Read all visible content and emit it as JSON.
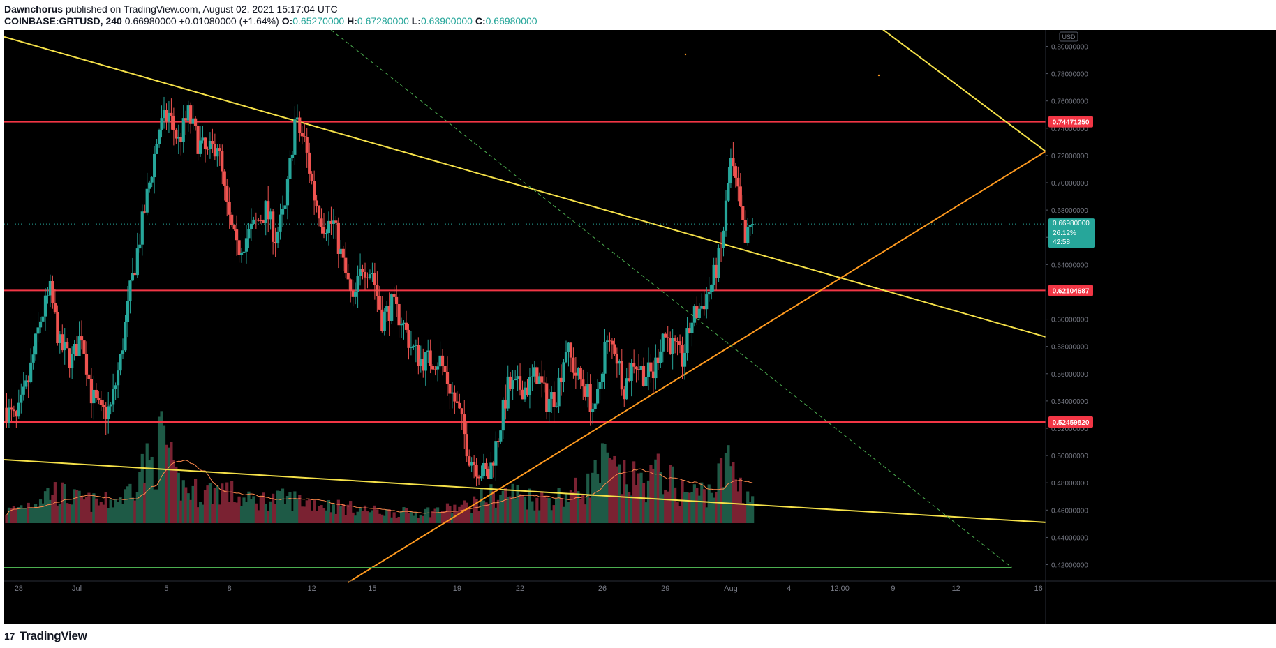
{
  "header": {
    "author": "Dawnchorus",
    "published_text": "published on TradingView.com, August 02, 2021 15:17:04 UTC",
    "symbol": "COINBASE:GRTUSD, 240",
    "price": "0.66980000",
    "change": "+0.01080000 (+1.64%)",
    "o_label": "O:",
    "o_value": "0.65270000",
    "h_label": "H:",
    "h_value": "0.67280000",
    "l_label": "L:",
    "l_value": "0.63900000",
    "c_label": "C:",
    "c_value": "0.66980000"
  },
  "footer": {
    "logo_text": "TradingView",
    "logo_icon": "tradingview-logo-icon"
  },
  "colors": {
    "background": "#000000",
    "up": "#26a69a",
    "down": "#ef5350",
    "vol_up": "#1e5a46",
    "vol_down": "#7a2232",
    "horizontal_level": "#f23645",
    "trendline": "#f5e149",
    "support_line": "#ff9a1f",
    "dashed": "#4caf50"
  },
  "chart_data": {
    "type": "candlestick",
    "title": "",
    "currency_badge": "USD",
    "ylim": [
      0.408,
      0.812
    ],
    "yticks": [
      "0.80000000",
      "0.78000000",
      "0.76000000",
      "0.74000000",
      "0.72000000",
      "0.70000000",
      "0.68000000",
      "0.66000000",
      "0.64000000",
      "0.62000000",
      "0.60000000",
      "0.58000000",
      "0.56000000",
      "0.54000000",
      "0.52000000",
      "0.50000000",
      "0.48000000",
      "0.46000000",
      "0.44000000",
      "0.42000000"
    ],
    "xlim": [
      0,
      43
    ],
    "xticks": [
      {
        "label": "28",
        "pos": 0.6
      },
      {
        "label": "Jul",
        "pos": 3.0
      },
      {
        "label": "5",
        "pos": 6.7
      },
      {
        "label": "8",
        "pos": 9.3
      },
      {
        "label": "12",
        "pos": 12.7
      },
      {
        "label": "15",
        "pos": 15.2
      },
      {
        "label": "19",
        "pos": 18.7
      },
      {
        "label": "22",
        "pos": 21.3
      },
      {
        "label": "26",
        "pos": 24.7
      },
      {
        "label": "29",
        "pos": 27.3
      },
      {
        "label": "Aug",
        "pos": 30.0
      },
      {
        "label": "4",
        "pos": 32.4
      },
      {
        "label": "12:00",
        "pos": 34.5
      },
      {
        "label": "9",
        "pos": 36.7
      },
      {
        "label": "12",
        "pos": 39.3
      },
      {
        "label": "16",
        "pos": 42.7
      }
    ],
    "last_candle_pos": 30.85,
    "current_price": 0.6698,
    "current_price_label": "0.66980000",
    "current_change": "26.12%",
    "current_countdown": "42:58",
    "key_points": [
      [
        0.0,
        0.535
      ],
      [
        0.5,
        0.525
      ],
      [
        1.0,
        0.555
      ],
      [
        1.5,
        0.6
      ],
      [
        1.9,
        0.62
      ],
      [
        2.3,
        0.58
      ],
      [
        2.8,
        0.57
      ],
      [
        3.2,
        0.59
      ],
      [
        3.6,
        0.545
      ],
      [
        4.0,
        0.53
      ],
      [
        4.4,
        0.535
      ],
      [
        4.8,
        0.57
      ],
      [
        5.2,
        0.62
      ],
      [
        5.6,
        0.66
      ],
      [
        6.0,
        0.7
      ],
      [
        6.4,
        0.74
      ],
      [
        6.8,
        0.75
      ],
      [
        7.2,
        0.73
      ],
      [
        7.6,
        0.75
      ],
      [
        8.0,
        0.73
      ],
      [
        8.4,
        0.72
      ],
      [
        8.8,
        0.73
      ],
      [
        9.2,
        0.68
      ],
      [
        9.6,
        0.65
      ],
      [
        10.0,
        0.66
      ],
      [
        10.4,
        0.67
      ],
      [
        10.8,
        0.68
      ],
      [
        11.2,
        0.66
      ],
      [
        11.6,
        0.68
      ],
      [
        12.0,
        0.745
      ],
      [
        12.4,
        0.73
      ],
      [
        12.8,
        0.69
      ],
      [
        13.2,
        0.67
      ],
      [
        13.6,
        0.67
      ],
      [
        14.0,
        0.64
      ],
      [
        14.4,
        0.61
      ],
      [
        14.8,
        0.64
      ],
      [
        15.2,
        0.635
      ],
      [
        15.6,
        0.6
      ],
      [
        16.0,
        0.61
      ],
      [
        16.4,
        0.6
      ],
      [
        16.8,
        0.58
      ],
      [
        17.2,
        0.57
      ],
      [
        17.6,
        0.57
      ],
      [
        18.0,
        0.57
      ],
      [
        18.4,
        0.55
      ],
      [
        18.8,
        0.53
      ],
      [
        19.2,
        0.5
      ],
      [
        19.6,
        0.49
      ],
      [
        20.0,
        0.485
      ],
      [
        20.4,
        0.515
      ],
      [
        20.8,
        0.55
      ],
      [
        21.2,
        0.55
      ],
      [
        21.6,
        0.55
      ],
      [
        22.0,
        0.56
      ],
      [
        22.4,
        0.54
      ],
      [
        22.8,
        0.545
      ],
      [
        23.2,
        0.58
      ],
      [
        23.6,
        0.56
      ],
      [
        24.0,
        0.55
      ],
      [
        24.4,
        0.53
      ],
      [
        24.8,
        0.58
      ],
      [
        25.2,
        0.58
      ],
      [
        25.6,
        0.55
      ],
      [
        26.0,
        0.57
      ],
      [
        26.4,
        0.56
      ],
      [
        26.8,
        0.56
      ],
      [
        27.2,
        0.59
      ],
      [
        27.6,
        0.58
      ],
      [
        28.0,
        0.57
      ],
      [
        28.4,
        0.6
      ],
      [
        28.8,
        0.61
      ],
      [
        29.2,
        0.625
      ],
      [
        29.6,
        0.65
      ],
      [
        30.0,
        0.715
      ],
      [
        30.3,
        0.69
      ],
      [
        30.6,
        0.655
      ],
      [
        30.85,
        0.6698
      ]
    ],
    "volume_key": [
      [
        0,
        0.1
      ],
      [
        1,
        0.18
      ],
      [
        2,
        0.3
      ],
      [
        3,
        0.22
      ],
      [
        4,
        0.18
      ],
      [
        5,
        0.25
      ],
      [
        5.6,
        0.5
      ],
      [
        6.2,
        0.55
      ],
      [
        6.6,
        0.85
      ],
      [
        7.0,
        0.4
      ],
      [
        7.6,
        0.3
      ],
      [
        8.2,
        0.28
      ],
      [
        9.0,
        0.32
      ],
      [
        10,
        0.2
      ],
      [
        11,
        0.22
      ],
      [
        12,
        0.22
      ],
      [
        13,
        0.18
      ],
      [
        14,
        0.15
      ],
      [
        15,
        0.12
      ],
      [
        16,
        0.1
      ],
      [
        17,
        0.1
      ],
      [
        18,
        0.12
      ],
      [
        19,
        0.15
      ],
      [
        20,
        0.25
      ],
      [
        21,
        0.28
      ],
      [
        22,
        0.22
      ],
      [
        23,
        0.25
      ],
      [
        24,
        0.32
      ],
      [
        24.8,
        0.55
      ],
      [
        25.5,
        0.4
      ],
      [
        26.5,
        0.38
      ],
      [
        27.2,
        0.48
      ],
      [
        27.8,
        0.3
      ],
      [
        28.5,
        0.28
      ],
      [
        29.2,
        0.3
      ],
      [
        30.0,
        0.58
      ],
      [
        30.5,
        0.3
      ],
      [
        30.85,
        0.25
      ]
    ],
    "horizontal_levels": [
      {
        "price": 0.7447125,
        "label": "0.74471250"
      },
      {
        "price": 0.62104687,
        "label": "0.62104687"
      },
      {
        "price": 0.5245982,
        "label": "0.52459820"
      }
    ],
    "trendlines": [
      {
        "kind": "yellow",
        "from": [
          0,
          0.807
        ],
        "to": [
          43,
          0.587
        ]
      },
      {
        "kind": "yellow",
        "from": [
          0,
          0.497
        ],
        "to": [
          43,
          0.451
        ]
      },
      {
        "kind": "yellow",
        "from": [
          34.5,
          0.836
        ],
        "to": [
          43,
          0.723
        ]
      },
      {
        "kind": "orange",
        "from": [
          14.2,
          0.407
        ],
        "to": [
          43,
          0.723
        ]
      },
      {
        "kind": "dashed",
        "from": [
          13.5,
          0.812
        ],
        "to": [
          41.6,
          0.418
        ]
      },
      {
        "kind": "green-flat",
        "from": [
          0,
          0.418
        ],
        "to": [
          41.6,
          0.418
        ]
      }
    ]
  }
}
